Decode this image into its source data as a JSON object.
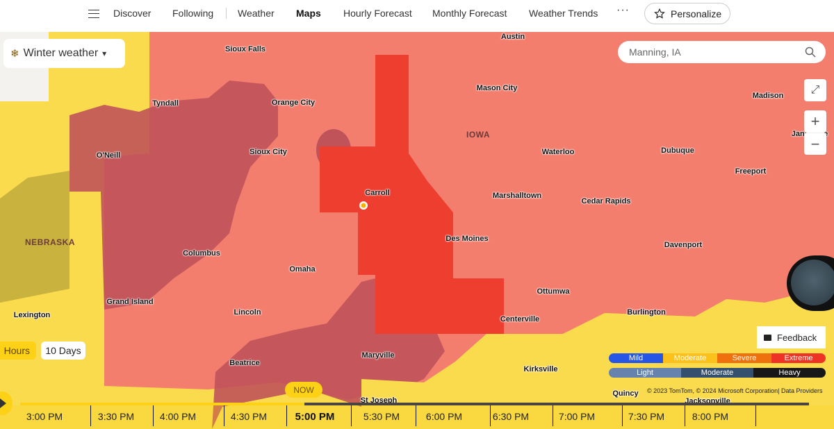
{
  "nav": {
    "items": [
      "Discover",
      "Following",
      "Weather",
      "Maps",
      "Hourly Forecast",
      "Monthly Forecast",
      "Weather Trends"
    ],
    "active": "Maps",
    "more": "···",
    "personalize": "Personalize"
  },
  "map": {
    "layer": "Winter weather",
    "search_value": "Manning, IA",
    "cities": [
      "Austin",
      "Sioux Falls",
      "Tyndall",
      "Orange City",
      "Mason City",
      "Madison",
      "Janesville",
      "Sioux City",
      "Waterloo",
      "Dubuque",
      "O'Neill",
      "Freeport",
      "Carroll",
      "Marshalltown",
      "Cedar Rapids",
      "Des Moines",
      "Davenport",
      "Columbus",
      "Omaha",
      "Ottumwa",
      "Grand Island",
      "Lincoln",
      "Burlington",
      "Lexington",
      "Centerville",
      "Maryville",
      "Beatrice",
      "Kirksville",
      "Quincy",
      "St Joseph",
      "Jacksonville"
    ],
    "states": [
      "IOWA",
      "NEBRASKA"
    ],
    "colors": {
      "moderate": "#fadb4e",
      "severe": "#f47e6e",
      "extreme": "#ee3e30",
      "heavy_overlay": "#c0535a"
    }
  },
  "controls": {
    "expand": "expand-icon",
    "zoom_in": "+",
    "zoom_out": "−",
    "feedback": "Feedback"
  },
  "legend": {
    "severity": [
      {
        "label": "Mild",
        "color": "#2556e6"
      },
      {
        "label": "Moderate",
        "color": "#fcc21b"
      },
      {
        "label": "Severe",
        "color": "#ef710e"
      },
      {
        "label": "Extreme",
        "color": "#ee3326"
      }
    ],
    "intensity": [
      {
        "label": "Light",
        "color": "#6583ad"
      },
      {
        "label": "Moderate",
        "color": "#34506e"
      },
      {
        "label": "Heavy",
        "color": "#181818"
      }
    ]
  },
  "attribution": "© 2023 TomTom, © 2024 Microsoft Corporation|  Data Providers",
  "timeline": {
    "range_hours": "Hours",
    "range_days": "10 Days",
    "now_label": "NOW",
    "current": "5:00 PM",
    "progress": 0.36,
    "times": [
      "3:00 PM",
      "3:30 PM",
      "4:00 PM",
      "4:30 PM",
      "5:00 PM",
      "5:30 PM",
      "6:00 PM",
      "6:30 PM",
      "7:00 PM",
      "7:30 PM",
      "8:00 PM"
    ]
  }
}
